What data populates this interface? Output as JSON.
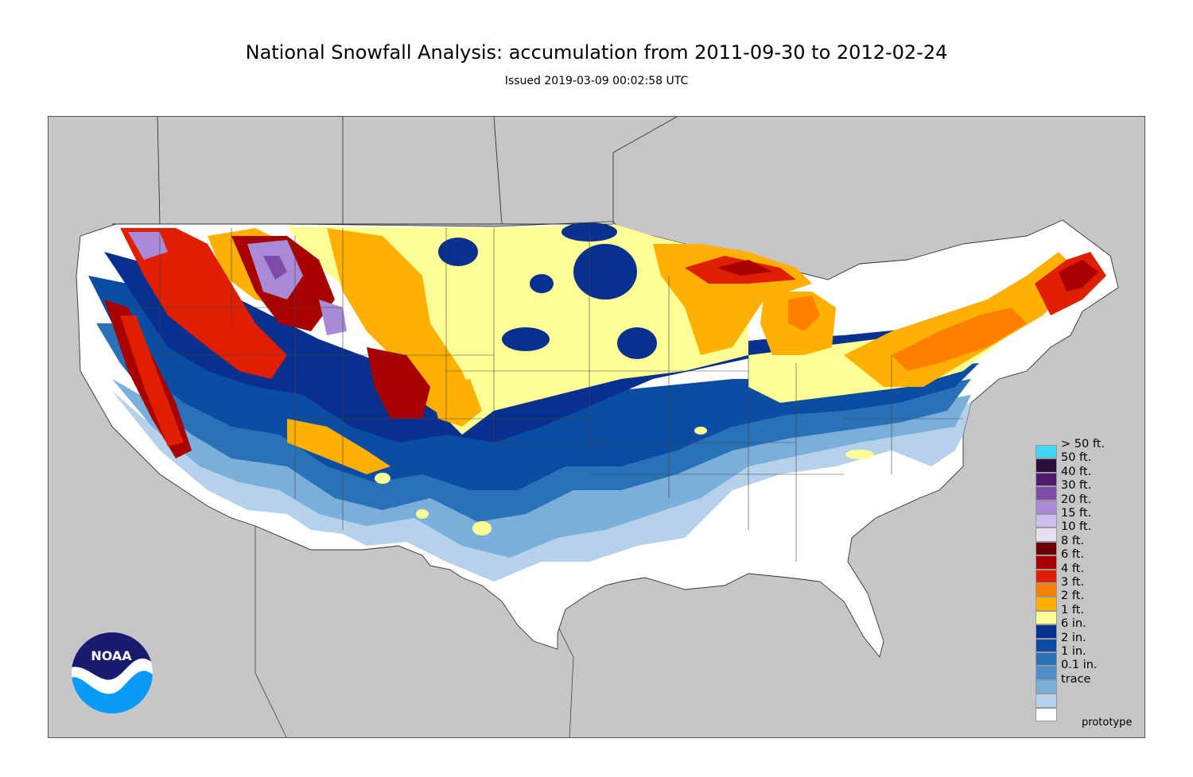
{
  "title": "National Snowfall Analysis: accumulation from 2011-09-30 to 2012-02-24",
  "subtitle": "Issued 2019-03-09 00:02:58 UTC",
  "watermark": "prototype",
  "logo": {
    "text": "NOAA",
    "colors": {
      "top": "#1a1a6e",
      "bottom": "#0a9cf5",
      "wing": "#ffffff"
    }
  },
  "map": {
    "background_color": "#c6c6c6",
    "land_color": "#ffffff",
    "border_color": "#555555"
  },
  "legend": {
    "items": [
      {
        "label": "> 50 ft.",
        "color": "#3fd5f5"
      },
      {
        "label": "50 ft.",
        "color": "#2a0f3a"
      },
      {
        "label": "40 ft.",
        "color": "#4e1a6e"
      },
      {
        "label": "30 ft.",
        "color": "#7d4ba8"
      },
      {
        "label": "20 ft.",
        "color": "#a98ad6"
      },
      {
        "label": "15 ft.",
        "color": "#cbbff0"
      },
      {
        "label": "10 ft.",
        "color": "#e8dff5"
      },
      {
        "label": "8 ft.",
        "color": "#6b0000"
      },
      {
        "label": "6 ft.",
        "color": "#a80000"
      },
      {
        "label": "4 ft.",
        "color": "#e01f00"
      },
      {
        "label": "3 ft.",
        "color": "#ff7f00"
      },
      {
        "label": "2 ft.",
        "color": "#ffb000"
      },
      {
        "label": "1 ft.",
        "color": "#ffff96"
      },
      {
        "label": "6 in.",
        "color": "#08308f"
      },
      {
        "label": "2 in.",
        "color": "#0a4da3"
      },
      {
        "label": "1 in.",
        "color": "#2a72b8"
      },
      {
        "label": "0.1 in.",
        "color": "#4e8fcb"
      },
      {
        "label": "trace",
        "color": "#7aafdc"
      },
      {
        "label": "",
        "color": "#b6d2ea"
      },
      {
        "label": "",
        "color": "#ffffff"
      }
    ]
  }
}
